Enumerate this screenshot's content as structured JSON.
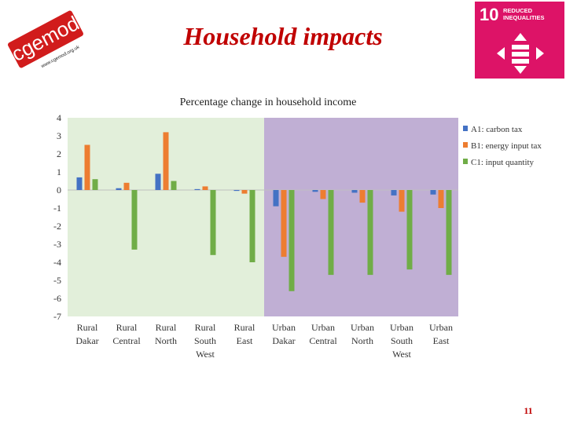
{
  "logo": {
    "text": "cgemod",
    "url": "www.cgemod.org.uk",
    "color": "#d11c1c"
  },
  "slide": {
    "title": "Household impacts",
    "page_number": "11",
    "title_color": "#c00000"
  },
  "sdg": {
    "number": "10",
    "label": "REDUCED\nINEQUALITIES",
    "color": "#dd1367",
    "icon": "reduced-inequalities-icon"
  },
  "chart_data": {
    "type": "bar",
    "title": "Percentage change in household income",
    "categories": [
      "Rural\nDakar",
      "Rural\nCentral",
      "Rural\nNorth",
      "Rural\nSouth\nWest",
      "Rural\nEast",
      "Urban\nDakar",
      "Urban\nCentral",
      "Urban\nNorth",
      "Urban\nSouth\nWest",
      "Urban\nEast"
    ],
    "series": [
      {
        "name": "A1: carbon tax",
        "color": "#4472c4",
        "values": [
          0.7,
          0.1,
          0.9,
          0.05,
          -0.05,
          -0.9,
          -0.1,
          -0.15,
          -0.3,
          -0.25
        ]
      },
      {
        "name": "B1: energy input tax",
        "color": "#ed7d31",
        "values": [
          2.5,
          0.4,
          3.2,
          0.2,
          -0.2,
          -3.7,
          -0.5,
          -0.7,
          -1.2,
          -1.0
        ]
      },
      {
        "name": "C1: input quantity",
        "color": "#70ad47",
        "values": [
          0.6,
          -3.3,
          0.5,
          -3.6,
          -4.0,
          -5.6,
          -4.7,
          -4.7,
          -4.4,
          -4.7
        ]
      }
    ],
    "ylim": [
      -7,
      4
    ],
    "yticks": [
      "4",
      "3",
      "2",
      "1",
      "0",
      "-1",
      "-2",
      "-3",
      "-4",
      "-5",
      "-6",
      "-7"
    ],
    "regions": [
      {
        "categories": "Rural",
        "color": "#e2efda"
      },
      {
        "categories": "Urban",
        "color": "#c0afd4"
      }
    ],
    "legend_position": "right"
  }
}
